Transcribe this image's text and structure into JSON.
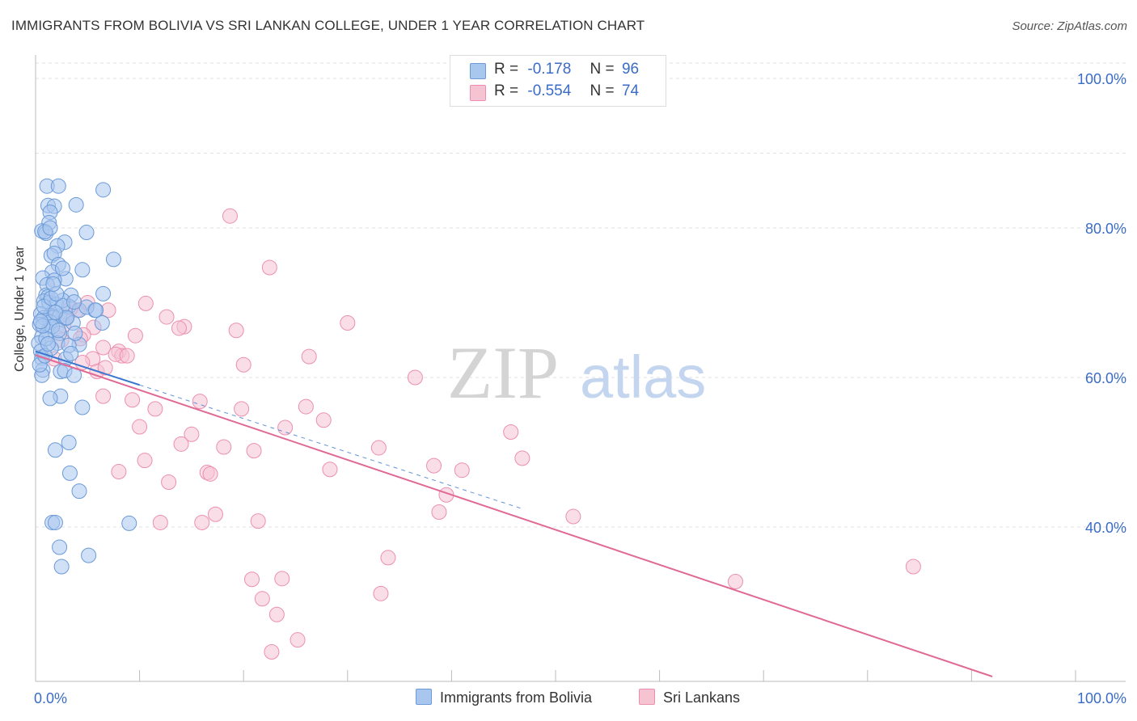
{
  "header": {
    "title": "IMMIGRANTS FROM BOLIVIA VS SRI LANKAN COLLEGE, UNDER 1 YEAR CORRELATION CHART",
    "source": "Source: ZipAtlas.com"
  },
  "watermark": {
    "zip": "ZIP",
    "atlas": "atlas"
  },
  "legend": {
    "series1": {
      "r_label": "R =",
      "r_value": "-0.178",
      "n_label": "N =",
      "n_value": "96"
    },
    "series2": {
      "r_label": "R =",
      "r_value": "-0.554",
      "n_label": "N =",
      "n_value": "74"
    }
  },
  "colors": {
    "blue_fill": "#a9c6ee",
    "blue_stroke": "#6a9ad8",
    "blue_line": "#3a78d0",
    "pink_fill": "#f6c3d3",
    "pink_stroke": "#ec8fae",
    "pink_line": "#e06a95",
    "axis_text": "#3a6cc7",
    "grid": "#e2e2e2"
  },
  "chart_data": {
    "type": "scatter",
    "title": "IMMIGRANTS FROM BOLIVIA VS SRI LANKAN COLLEGE, UNDER 1 YEAR CORRELATION CHART",
    "xlabel": "",
    "ylabel": "College, Under 1 year",
    "xlim": [
      0,
      100
    ],
    "ylim": [
      20,
      104
    ],
    "x_tick_labels": [
      "0.0%",
      "100.0%"
    ],
    "y_ticks": [
      40,
      60,
      80,
      100
    ],
    "y_tick_labels": [
      "40.0%",
      "60.0%",
      "80.0%",
      "100.0%"
    ],
    "grid": true,
    "legend_position": "top-center",
    "series": [
      {
        "name": "Immigrants from Bolivia",
        "color": "blue",
        "R": -0.178,
        "N": 96,
        "trend": {
          "x": [
            0,
            10
          ],
          "y": [
            63.5,
            59.0
          ],
          "solid_to": 10,
          "dashed_x_end": 47
        },
        "points": [
          [
            1.1,
            85.6
          ],
          [
            2.2,
            85.6
          ],
          [
            6.5,
            85.1
          ],
          [
            1.2,
            83.0
          ],
          [
            1.8,
            82.9
          ],
          [
            3.9,
            83.1
          ],
          [
            1.4,
            82.1
          ],
          [
            1.3,
            80.7
          ],
          [
            0.6,
            79.6
          ],
          [
            1.0,
            79.3
          ],
          [
            0.9,
            79.5
          ],
          [
            1.4,
            80.0
          ],
          [
            4.9,
            79.4
          ],
          [
            2.8,
            78.1
          ],
          [
            2.1,
            77.6
          ],
          [
            1.5,
            76.3
          ],
          [
            1.8,
            76.6
          ],
          [
            7.5,
            75.8
          ],
          [
            2.2,
            75.1
          ],
          [
            1.6,
            74.1
          ],
          [
            4.5,
            74.4
          ],
          [
            0.7,
            73.3
          ],
          [
            2.9,
            73.2
          ],
          [
            1.8,
            73.0
          ],
          [
            1.1,
            72.4
          ],
          [
            1.0,
            71.0
          ],
          [
            1.2,
            70.8
          ],
          [
            3.4,
            71.0
          ],
          [
            6.5,
            71.2
          ],
          [
            0.8,
            70.2
          ],
          [
            1.3,
            70.0
          ],
          [
            2.0,
            69.8
          ],
          [
            3.2,
            69.5
          ],
          [
            4.2,
            69.0
          ],
          [
            5.7,
            69.0
          ],
          [
            0.5,
            68.5
          ],
          [
            1.4,
            68.3
          ],
          [
            1.7,
            68.0
          ],
          [
            2.3,
            68.2
          ],
          [
            0.8,
            68.0
          ],
          [
            2.9,
            67.9
          ],
          [
            1.4,
            67.4
          ],
          [
            0.4,
            67.1
          ],
          [
            3.6,
            67.3
          ],
          [
            6.4,
            67.3
          ],
          [
            1.2,
            66.2
          ],
          [
            2.3,
            65.9
          ],
          [
            0.6,
            65.4
          ],
          [
            0.3,
            64.6
          ],
          [
            2.1,
            64.6
          ],
          [
            4.2,
            64.4
          ],
          [
            3.2,
            64.3
          ],
          [
            1.5,
            63.9
          ],
          [
            0.5,
            63.5
          ],
          [
            0.6,
            62.6
          ],
          [
            2.9,
            62.5
          ],
          [
            0.7,
            61.0
          ],
          [
            2.4,
            60.8
          ],
          [
            2.8,
            60.9
          ],
          [
            3.7,
            60.3
          ],
          [
            0.6,
            60.3
          ],
          [
            2.4,
            57.5
          ],
          [
            1.4,
            57.2
          ],
          [
            4.5,
            56.0
          ],
          [
            3.2,
            51.3
          ],
          [
            1.9,
            50.3
          ],
          [
            3.3,
            47.2
          ],
          [
            4.2,
            44.8
          ],
          [
            1.6,
            40.6
          ],
          [
            1.9,
            40.6
          ],
          [
            9.0,
            40.5
          ],
          [
            2.3,
            37.3
          ],
          [
            5.1,
            36.2
          ],
          [
            2.5,
            34.7
          ],
          [
            0.8,
            69.5
          ],
          [
            1.6,
            66.8
          ],
          [
            2.6,
            70.3
          ],
          [
            3.8,
            65.9
          ],
          [
            1.0,
            65.2
          ],
          [
            2.6,
            69.6
          ],
          [
            3.0,
            68.0
          ],
          [
            0.4,
            61.7
          ],
          [
            0.9,
            62.9
          ],
          [
            1.9,
            68.7
          ],
          [
            1.5,
            70.6
          ],
          [
            4.9,
            69.4
          ],
          [
            5.8,
            69.0
          ],
          [
            2.2,
            66.3
          ],
          [
            3.4,
            63.2
          ],
          [
            1.2,
            64.5
          ],
          [
            0.7,
            66.9
          ],
          [
            2.0,
            71.2
          ],
          [
            3.7,
            70.1
          ],
          [
            1.7,
            72.5
          ],
          [
            2.6,
            74.6
          ],
          [
            0.5,
            67.5
          ]
        ]
      },
      {
        "name": "Sri Lankans",
        "color": "pink",
        "R": -0.554,
        "N": 74,
        "trend": {
          "x": [
            0,
            92
          ],
          "y": [
            63.0,
            20.0
          ]
        },
        "points": [
          [
            18.7,
            81.6
          ],
          [
            22.5,
            74.7
          ],
          [
            10.6,
            69.9
          ],
          [
            12.6,
            68.1
          ],
          [
            30.0,
            67.3
          ],
          [
            14.3,
            66.8
          ],
          [
            13.8,
            66.6
          ],
          [
            19.3,
            66.3
          ],
          [
            5.6,
            66.7
          ],
          [
            9.6,
            65.6
          ],
          [
            4.6,
            65.7
          ],
          [
            4.3,
            65.2
          ],
          [
            6.5,
            64.0
          ],
          [
            8.0,
            63.5
          ],
          [
            8.3,
            62.9
          ],
          [
            7.7,
            63.1
          ],
          [
            8.8,
            62.9
          ],
          [
            5.5,
            62.5
          ],
          [
            26.3,
            62.8
          ],
          [
            20.0,
            61.7
          ],
          [
            5.9,
            60.8
          ],
          [
            6.7,
            61.3
          ],
          [
            36.5,
            60.0
          ],
          [
            6.5,
            57.5
          ],
          [
            9.3,
            57.0
          ],
          [
            15.8,
            56.8
          ],
          [
            11.5,
            55.8
          ],
          [
            19.8,
            55.8
          ],
          [
            26.0,
            56.1
          ],
          [
            27.7,
            54.3
          ],
          [
            10.0,
            53.4
          ],
          [
            24.0,
            53.3
          ],
          [
            15.0,
            52.4
          ],
          [
            45.7,
            52.7
          ],
          [
            14.0,
            51.1
          ],
          [
            18.1,
            50.7
          ],
          [
            21.0,
            50.2
          ],
          [
            33.0,
            50.6
          ],
          [
            46.8,
            49.2
          ],
          [
            10.5,
            48.9
          ],
          [
            38.3,
            48.2
          ],
          [
            41.0,
            47.6
          ],
          [
            8.0,
            47.4
          ],
          [
            16.5,
            47.3
          ],
          [
            28.3,
            47.7
          ],
          [
            16.8,
            47.1
          ],
          [
            12.8,
            46.0
          ],
          [
            39.5,
            44.3
          ],
          [
            17.3,
            41.7
          ],
          [
            51.7,
            41.4
          ],
          [
            38.8,
            42.0
          ],
          [
            12.0,
            40.6
          ],
          [
            16.0,
            40.6
          ],
          [
            21.4,
            40.8
          ],
          [
            33.9,
            35.9
          ],
          [
            84.4,
            34.7
          ],
          [
            67.3,
            32.7
          ],
          [
            20.8,
            33.0
          ],
          [
            23.7,
            33.1
          ],
          [
            33.2,
            31.1
          ],
          [
            21.8,
            30.4
          ],
          [
            23.2,
            28.3
          ],
          [
            25.2,
            24.9
          ],
          [
            22.7,
            23.3
          ],
          [
            4.0,
            69.0
          ],
          [
            2.5,
            65.0
          ],
          [
            3.0,
            68.0
          ],
          [
            5.0,
            70.0
          ],
          [
            1.5,
            68.3
          ],
          [
            2.7,
            67.0
          ],
          [
            7.0,
            69.0
          ],
          [
            1.8,
            62.5
          ],
          [
            4.5,
            62.0
          ],
          [
            3.4,
            69.3
          ]
        ]
      }
    ]
  },
  "bottom_legend": {
    "series1": "Immigrants from Bolivia",
    "series2": "Sri Lankans"
  }
}
